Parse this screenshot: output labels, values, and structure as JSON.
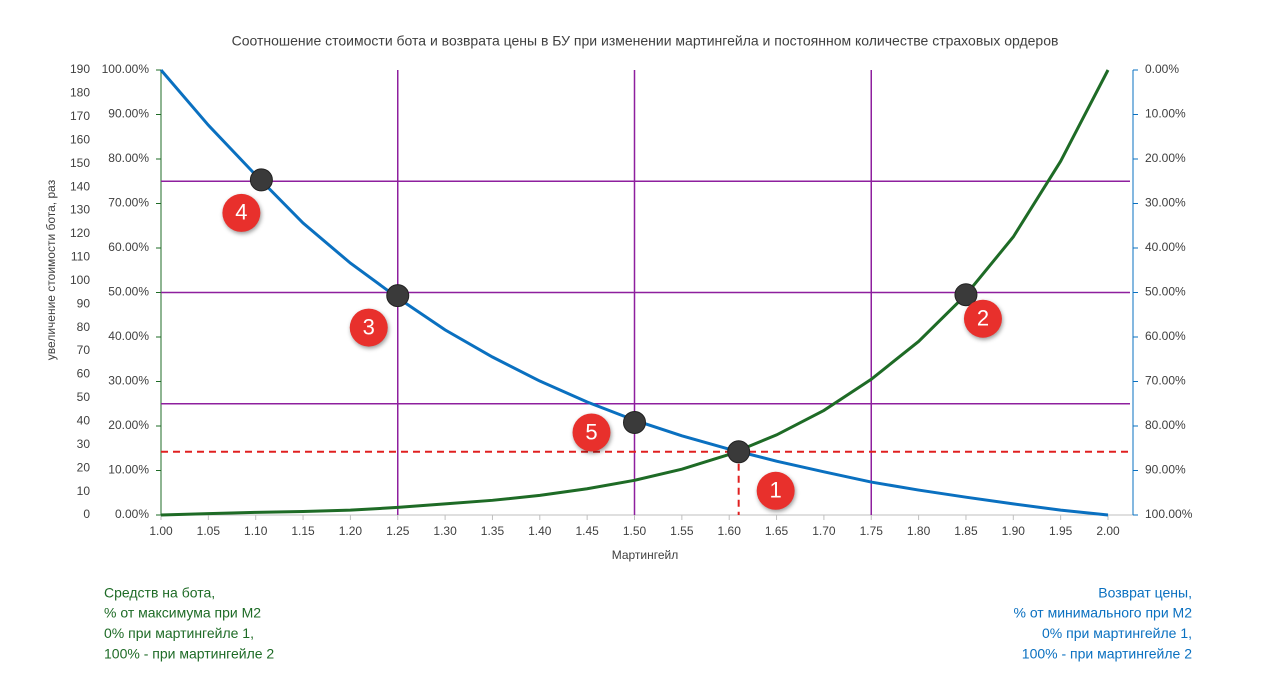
{
  "chart_data": {
    "type": "line",
    "title": "Соотношение стоимости бота и возврата цены в БУ при изменении мартингейла и постоянном количестве страховых ордеров",
    "x_label": "Мартингейл",
    "y3_label": "увеличение стоимости бота, раз",
    "x": [
      1.0,
      1.05,
      1.1,
      1.15,
      1.2,
      1.25,
      1.3,
      1.35,
      1.4,
      1.45,
      1.5,
      1.55,
      1.6,
      1.65,
      1.7,
      1.75,
      1.8,
      1.85,
      1.9,
      1.95,
      2.0
    ],
    "xlim": [
      1,
      2
    ],
    "xticks": [
      {
        "value": 1.0,
        "label": "1.00"
      },
      {
        "value": 1.05,
        "label": "1.05"
      },
      {
        "value": 1.1,
        "label": "1.10"
      },
      {
        "value": 1.15,
        "label": "1.15"
      },
      {
        "value": 1.2,
        "label": "1.20"
      },
      {
        "value": 1.25,
        "label": "1.25"
      },
      {
        "value": 1.3,
        "label": "1.30"
      },
      {
        "value": 1.35,
        "label": "1.35"
      },
      {
        "value": 1.4,
        "label": "1.40"
      },
      {
        "value": 1.45,
        "label": "1.45"
      },
      {
        "value": 1.5,
        "label": "1.50"
      },
      {
        "value": 1.55,
        "label": "1.55"
      },
      {
        "value": 1.6,
        "label": "1.60"
      },
      {
        "value": 1.65,
        "label": "1.65"
      },
      {
        "value": 1.7,
        "label": "1.70"
      },
      {
        "value": 1.75,
        "label": "1.75"
      },
      {
        "value": 1.8,
        "label": "1.80"
      },
      {
        "value": 1.85,
        "label": "1.85"
      },
      {
        "value": 1.9,
        "label": "1.90"
      },
      {
        "value": 1.95,
        "label": "1.95"
      },
      {
        "value": 2.0,
        "label": "2.00"
      }
    ],
    "ylim": [
      0,
      100
    ],
    "yticks": [
      {
        "value": 0,
        "label": "0.00%"
      },
      {
        "value": 10,
        "label": "10.00%"
      },
      {
        "value": 20,
        "label": "20.00%"
      },
      {
        "value": 30,
        "label": "30.00%"
      },
      {
        "value": 40,
        "label": "40.00%"
      },
      {
        "value": 50,
        "label": "50.00%"
      },
      {
        "value": 60,
        "label": "60.00%"
      },
      {
        "value": 70,
        "label": "70.00%"
      },
      {
        "value": 80,
        "label": "80.00%"
      },
      {
        "value": 90,
        "label": "90.00%"
      },
      {
        "value": 100,
        "label": "100.00%"
      }
    ],
    "y2lim": [
      0,
      100
    ],
    "y2_reversed": true,
    "y2ticks": [
      {
        "value": 0,
        "label": "0.00%"
      },
      {
        "value": 10,
        "label": "10.00%"
      },
      {
        "value": 20,
        "label": "20.00%"
      },
      {
        "value": 30,
        "label": "30.00%"
      },
      {
        "value": 40,
        "label": "40.00%"
      },
      {
        "value": 50,
        "label": "50.00%"
      },
      {
        "value": 60,
        "label": "60.00%"
      },
      {
        "value": 70,
        "label": "70.00%"
      },
      {
        "value": 80,
        "label": "80.00%"
      },
      {
        "value": 90,
        "label": "90.00%"
      },
      {
        "value": 100,
        "label": "100.00%"
      }
    ],
    "y3lim": [
      0,
      190
    ],
    "y3ticks": [
      0,
      10,
      20,
      30,
      40,
      50,
      60,
      70,
      80,
      90,
      100,
      110,
      120,
      130,
      140,
      150,
      160,
      170,
      180,
      190
    ],
    "series": [
      {
        "name": "Средств на бота,",
        "notes": [
          "% от максимума при М2",
          "0% при мартингейле 1,",
          "100% - при мартингейле 2"
        ],
        "color": "#1e6b26",
        "values": [
          0,
          0.3,
          0.6,
          0.8,
          1.1,
          1.7,
          2.5,
          3.3,
          4.4,
          5.9,
          7.8,
          10.3,
          13.6,
          18,
          23.5,
          30.5,
          39,
          49.5,
          62.5,
          79.5,
          100
        ]
      },
      {
        "name": "Возврат цены,",
        "notes": [
          "% от минимального при М2",
          "0% при мартингейле 1,",
          "100% - при мартингейле 2"
        ],
        "color": "#0a70c0",
        "axis": "y2",
        "values": [
          0,
          12.4,
          23.6,
          34.4,
          43.4,
          51.2,
          58.4,
          64.5,
          69.9,
          74.6,
          78.7,
          82.2,
          85.2,
          87.9,
          90.3,
          92.6,
          94.4,
          96.0,
          97.5,
          98.9,
          100
        ]
      }
    ],
    "reference_lines": {
      "x": [
        1.25,
        1.5,
        1.75
      ],
      "y": [
        25,
        50,
        75
      ],
      "color": "#8e1f9e"
    },
    "threshold": {
      "x": 1.61,
      "y": 14.2,
      "color": "#e02020"
    },
    "markers": [
      {
        "label": "1",
        "x": 1.61,
        "y": 14.2
      },
      {
        "label": "2",
        "x": 1.85,
        "y": 49.5
      },
      {
        "label": "3",
        "x": 1.25,
        "y": 49.3
      },
      {
        "label": "4",
        "x": 1.106,
        "y": 75.3
      },
      {
        "label": "5",
        "x": 1.5,
        "y": 20.8
      }
    ]
  }
}
